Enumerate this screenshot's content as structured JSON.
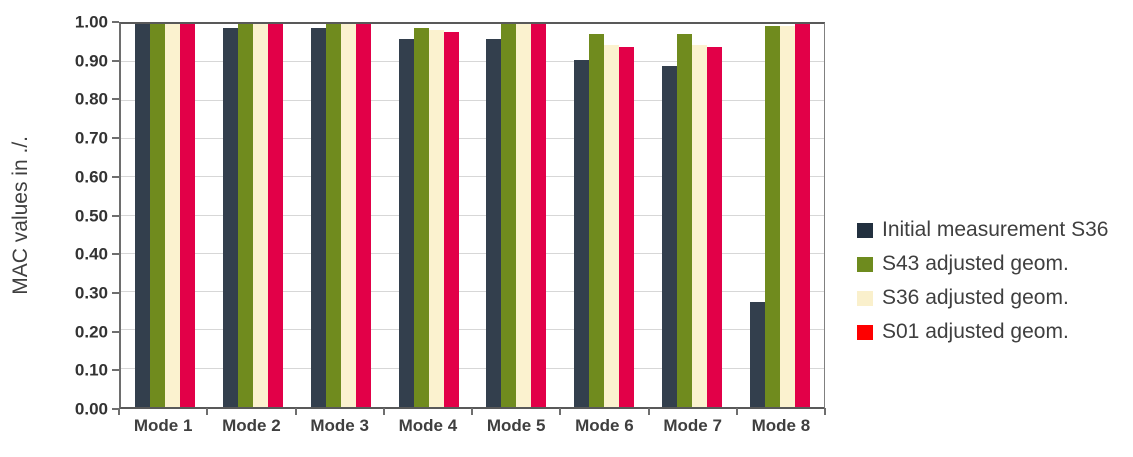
{
  "figure": {
    "background": "#ffffff",
    "axis_color": "#595959",
    "grid_color": "#d7d7d7",
    "tick_text_color": "#333333",
    "label_text_color": "#3f3f3f"
  },
  "chart_data": {
    "type": "bar",
    "title": "",
    "xlabel": "",
    "ylabel": "MAC values in ./.",
    "categories": [
      "Mode 1",
      "Mode 2",
      "Mode 3",
      "Mode 4",
      "Mode 5",
      "Mode 6",
      "Mode 7",
      "Mode 8"
    ],
    "series": [
      {
        "name": "Initial measurement S36",
        "color": "#333f4d",
        "legend_color": "#22303f",
        "values": [
          1.0,
          0.99,
          0.99,
          0.96,
          0.96,
          0.905,
          0.89,
          0.275
        ]
      },
      {
        "name": "S43 adjusted geom.",
        "color": "#708b1e",
        "legend_color": "#6e8b1e",
        "values": [
          1.0,
          1.0,
          1.0,
          0.99,
          1.0,
          0.975,
          0.975,
          0.995
        ]
      },
      {
        "name": "S36 adjusted geom.",
        "color": "#fbf2cf",
        "legend_color": "#faf0cc",
        "values": [
          1.0,
          1.0,
          1.0,
          0.985,
          1.0,
          0.945,
          0.945,
          0.995
        ]
      },
      {
        "name": "S01 adjusted geom.",
        "color": "#e20048",
        "legend_color": "#fe0000",
        "values": [
          1.0,
          1.0,
          1.0,
          0.98,
          1.0,
          0.94,
          0.94,
          1.0
        ]
      }
    ],
    "ylim": [
      0,
      1.0
    ],
    "ytick_step": 0.1,
    "ytick_labels": [
      "0.00",
      "0.10",
      "0.20",
      "0.30",
      "0.40",
      "0.50",
      "0.60",
      "0.70",
      "0.80",
      "0.90",
      "1.00"
    ],
    "grid": true,
    "legend_position": "right"
  }
}
